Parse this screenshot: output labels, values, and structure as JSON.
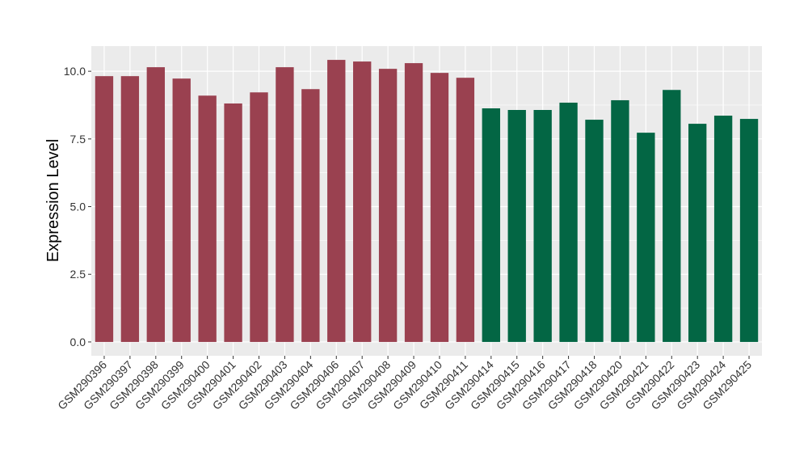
{
  "chart_data": {
    "type": "bar",
    "title": "",
    "xlabel": "",
    "ylabel": "Expression Level",
    "ylim": [
      -0.51,
      10.93
    ],
    "yticks": [
      0,
      2.5,
      5,
      7.5,
      10
    ],
    "ytick_labels": [
      "0.0",
      "2.5",
      "5.0",
      "7.5",
      "10.0"
    ],
    "grid": true,
    "legend": "none",
    "categories": [
      "GSM290396",
      "GSM290397",
      "GSM290398",
      "GSM290399",
      "GSM290400",
      "GSM290401",
      "GSM290402",
      "GSM290403",
      "GSM290404",
      "GSM290406",
      "GSM290407",
      "GSM290408",
      "GSM290409",
      "GSM290410",
      "GSM290411",
      "GSM290414",
      "GSM290415",
      "GSM290416",
      "GSM290417",
      "GSM290418",
      "GSM290420",
      "GSM290421",
      "GSM290422",
      "GSM290423",
      "GSM290424",
      "GSM290425"
    ],
    "values": [
      9.82,
      9.82,
      10.15,
      9.73,
      9.1,
      8.81,
      9.22,
      10.15,
      9.34,
      10.42,
      10.36,
      10.09,
      10.3,
      9.94,
      9.76,
      8.63,
      8.57,
      8.57,
      8.84,
      8.21,
      8.93,
      7.73,
      9.31,
      8.06,
      8.36,
      8.24
    ],
    "groups": [
      0,
      0,
      0,
      0,
      0,
      0,
      0,
      0,
      0,
      0,
      0,
      0,
      0,
      0,
      0,
      1,
      1,
      1,
      1,
      1,
      1,
      1,
      1,
      1,
      1,
      1
    ],
    "colors": [
      "#9a4150",
      "#036644"
    ]
  }
}
